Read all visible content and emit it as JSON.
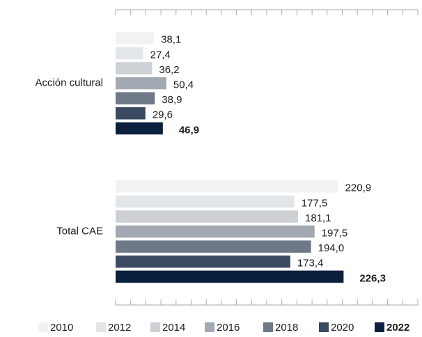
{
  "chart_data": {
    "type": "barh",
    "categories": [
      "Acción cultural",
      "Total CAE"
    ],
    "xlim": [
      0,
      300
    ],
    "xticks": [
      0,
      15,
      30,
      45,
      60,
      75,
      90,
      105,
      120,
      135,
      150,
      165,
      180,
      195,
      210,
      225,
      240,
      255,
      270,
      285,
      300
    ],
    "legend": "bottom",
    "series": [
      {
        "name": "2010",
        "color": "#f1f2f4",
        "values": [
          38.1,
          220.9
        ],
        "value_labels": [
          "38,1",
          "220,9"
        ]
      },
      {
        "name": "2012",
        "color": "#e3e6e9",
        "values": [
          27.4,
          177.5
        ],
        "value_labels": [
          "27,4",
          "177,5"
        ]
      },
      {
        "name": "2014",
        "color": "#cdd1d6",
        "values": [
          36.2,
          181.1
        ],
        "value_labels": [
          "36,2",
          "181,1"
        ]
      },
      {
        "name": "2016",
        "color": "#a3a9b2",
        "values": [
          50.4,
          197.5
        ],
        "value_labels": [
          "50,4",
          "197,5"
        ]
      },
      {
        "name": "2018",
        "color": "#6e7886",
        "values": [
          38.9,
          194.0
        ],
        "value_labels": [
          "38,9",
          "194,0"
        ]
      },
      {
        "name": "2020",
        "color": "#3a4a60",
        "values": [
          29.6,
          173.4
        ],
        "value_labels": [
          "29,6",
          "173,4"
        ]
      },
      {
        "name": "2022",
        "color": "#0b1f3f",
        "values": [
          46.9,
          226.3
        ],
        "value_labels": [
          "46,9",
          "226,3"
        ]
      }
    ]
  }
}
